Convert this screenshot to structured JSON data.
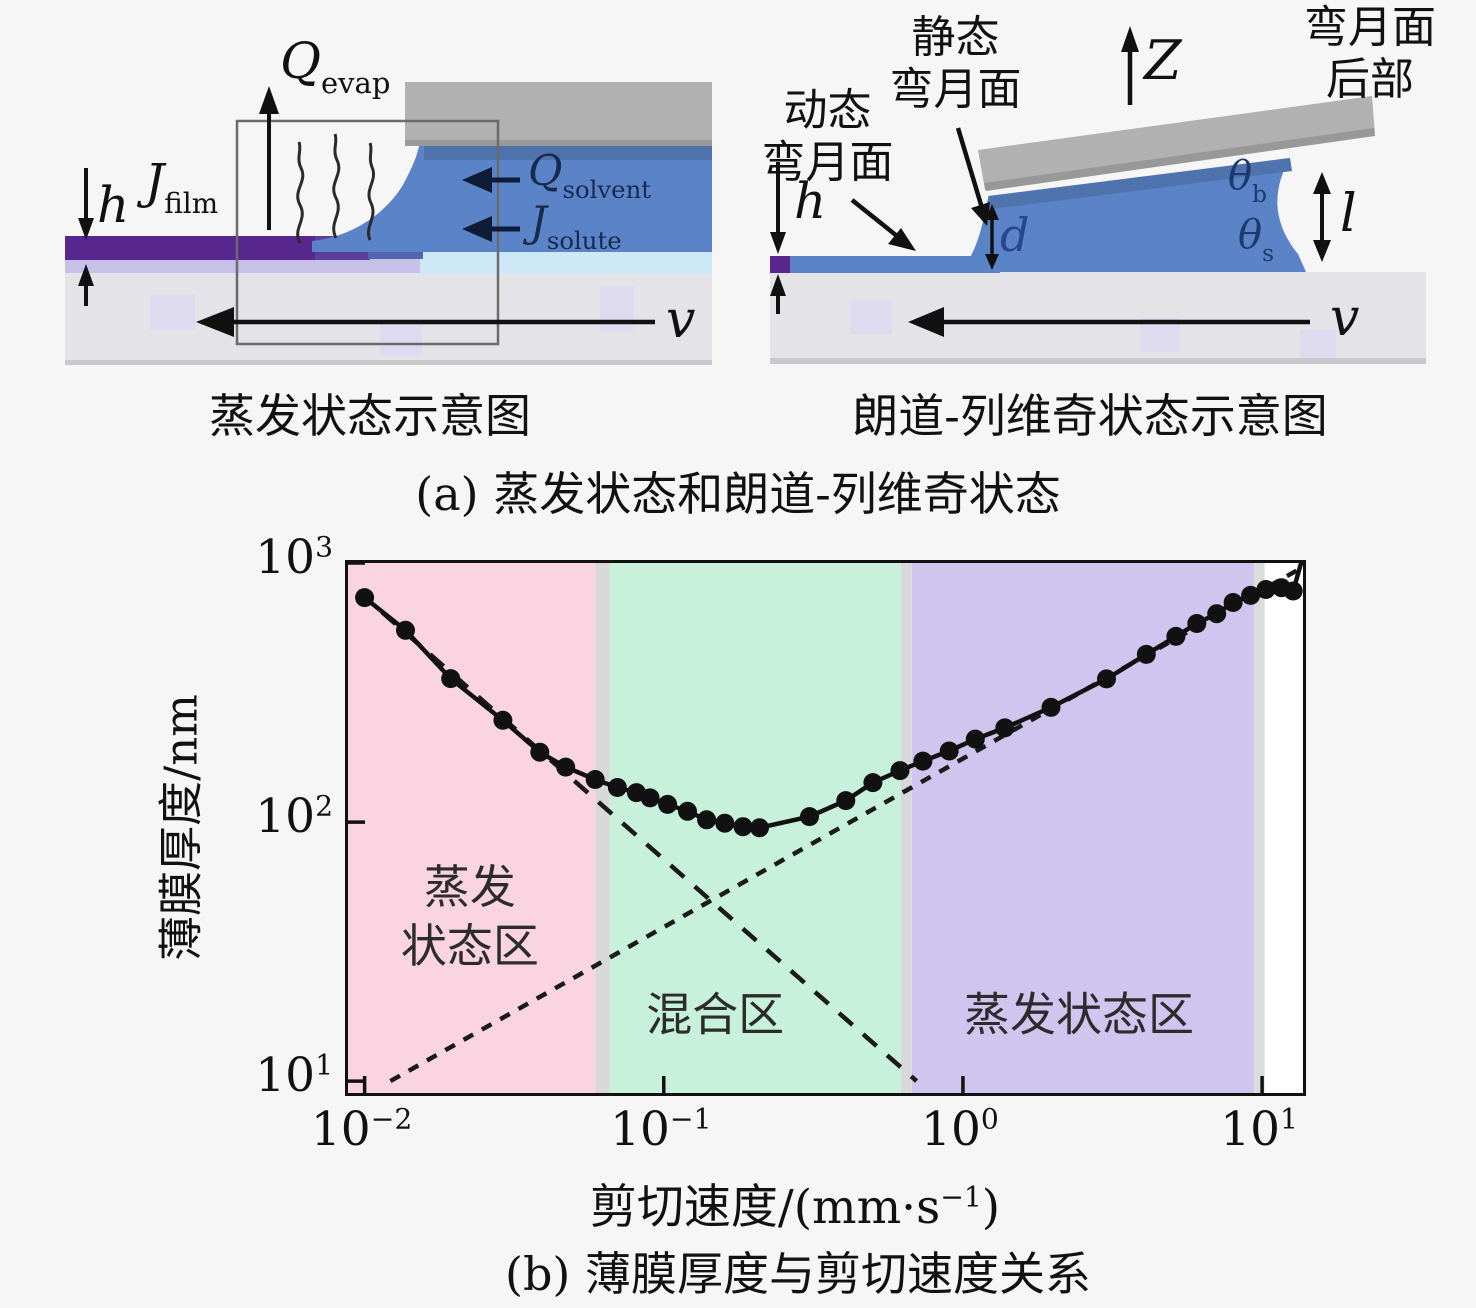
{
  "figure": {
    "caption_a": "(a) 蒸发状态和朗道-列维奇状态",
    "caption_b": "(b) 薄膜厚度与剪切速度关系"
  },
  "diagram_a": {
    "caption": "蒸发状态示意图",
    "q_evap": {
      "base": "Q",
      "sub": "evap"
    },
    "j_film": {
      "base": "J",
      "sub": "film"
    },
    "q_solvent": {
      "base": "Q",
      "sub": "solvent"
    },
    "j_solute": {
      "base": "J",
      "sub": "solute"
    },
    "h_label": "h",
    "v_label": "v"
  },
  "diagram_b": {
    "caption": "朗道-列维奇状态示意图",
    "dynamic_meniscus": [
      "动态",
      "弯月面"
    ],
    "static_meniscus": [
      "静态",
      "弯月面"
    ],
    "meniscus_back": [
      "弯月面",
      "后部"
    ],
    "z_label": "Z",
    "h_label": "h",
    "d_label": "d",
    "l_label": "l",
    "v_label": "v",
    "theta_b": {
      "base": "θ",
      "sub": "b"
    },
    "theta_s": {
      "base": "θ",
      "sub": "s"
    }
  },
  "chart_data": {
    "type": "scatter",
    "title": "",
    "ylabel": "薄膜厚度/nm",
    "xlabel_parts": {
      "prefix": "剪切速度/(mm·s",
      "sup": "−1",
      "suffix": ")"
    },
    "x_scale": "log",
    "y_scale": "log",
    "xlim": [
      0.0088,
      13.7
    ],
    "ylim": [
      9.0,
      1000
    ],
    "grid": false,
    "x_ticks": [
      {
        "base": "10",
        "exp": "−2",
        "value": 0.01
      },
      {
        "base": "10",
        "exp": "−1",
        "value": 0.1
      },
      {
        "base": "10",
        "exp": "0",
        "value": 1
      },
      {
        "base": "10",
        "exp": "1",
        "value": 10
      }
    ],
    "y_ticks": [
      {
        "base": "10",
        "exp": "3",
        "value": 1000
      },
      {
        "base": "10",
        "exp": "2",
        "value": 100
      },
      {
        "base": "10",
        "exp": "1",
        "value": 10
      }
    ],
    "bands": [
      {
        "name": "evaporation-zone",
        "color": "#fbd4e2",
        "from": 0.0088,
        "to": 0.059
      },
      {
        "name": "gap-1",
        "color": "#d8d8d8",
        "from": 0.059,
        "to": 0.066
      },
      {
        "name": "mixed-zone",
        "color": "#c8f1dc",
        "from": 0.066,
        "to": 0.62
      },
      {
        "name": "gap-2",
        "color": "#d8d8d8",
        "from": 0.62,
        "to": 0.675
      },
      {
        "name": "landau-levich-zone",
        "color": "#cfc5ee",
        "from": 0.675,
        "to": 9.4
      },
      {
        "name": "gap-3",
        "color": "#dcdcdc",
        "from": 9.4,
        "to": 10.2
      },
      {
        "name": "right-margin",
        "color": "#ffffff",
        "from": 10.2,
        "to": 13.7
      }
    ],
    "region_labels": [
      {
        "name": "evaporation-zone-label",
        "lines": [
          "蒸发",
          "状态区"
        ],
        "v": 0.023,
        "h": 42
      },
      {
        "name": "mixed-zone-label",
        "lines": [
          "混合区"
        ],
        "v": 0.152,
        "h": 17.5
      },
      {
        "name": "landau-levich-zone-label",
        "lines": [
          "蒸发状态区"
        ],
        "v": 2.5,
        "h": 17.5
      }
    ],
    "series": [
      {
        "name": "film-thickness-data",
        "type": "scatter",
        "v": [
          0.01,
          0.0137,
          0.0194,
          0.029,
          0.0385,
          0.047,
          0.059,
          0.07,
          0.081,
          0.09,
          0.103,
          0.12,
          0.139,
          0.16,
          0.184,
          0.209,
          0.307,
          0.406,
          0.5,
          0.616,
          0.735,
          0.9,
          1.1,
          1.38,
          1.97,
          3.02,
          4.1,
          5.15,
          6.05,
          7.05,
          8.0,
          9.15,
          10.3,
          11.6,
          12.7
        ],
        "h": [
          735,
          550,
          358,
          247,
          186,
          163,
          146,
          136,
          130,
          124,
          117,
          110,
          102,
          99,
          96,
          95,
          105,
          121,
          142,
          158,
          172,
          188,
          209,
          231,
          277,
          357,
          444,
          521,
          584,
          637,
          704,
          750,
          790,
          803,
          780
        ]
      }
    ],
    "solid_curve_extension": [
      [
        13.6,
        1030
      ]
    ],
    "dashed_lines": [
      {
        "name": "evaporation-branch",
        "from": [
          0.0095,
          780
        ],
        "to": [
          0.7,
          10
        ],
        "dash": "18 14"
      },
      {
        "name": "landau-levich-branch",
        "from": [
          0.0122,
          10
        ],
        "to": [
          13.6,
          960
        ],
        "dash": "11 10"
      }
    ]
  }
}
